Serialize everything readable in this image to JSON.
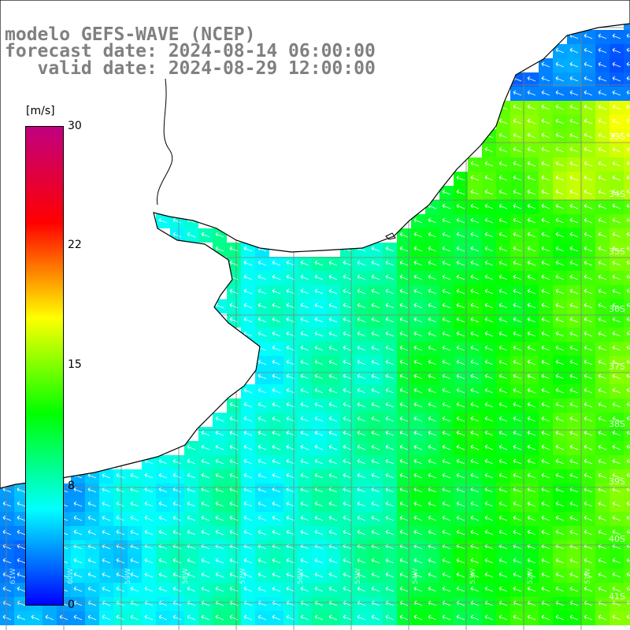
{
  "title": {
    "line1": "modelo GEFS-WAVE (NCEP)",
    "line2": "forecast date: 2024-08-14 06:00:00",
    "line3": "   valid date: 2024-08-29 12:00:00"
  },
  "colorbar": {
    "unit": "[m/s]",
    "min": 0,
    "max": 30,
    "ticks": [
      "30",
      "22",
      "15",
      "8",
      "0"
    ],
    "colors": [
      "#0000ff",
      "#00ffff",
      "#00ff00",
      "#ffff00",
      "#ff0000",
      "#c00080"
    ]
  },
  "latitude_labels": [
    "33S",
    "34S",
    "35S",
    "36S",
    "37S",
    "38S",
    "39S",
    "40S",
    "41S"
  ],
  "longitude_labels": [
    "61W",
    "60W",
    "59W",
    "58W",
    "57W",
    "56W",
    "55W",
    "54W",
    "53W",
    "52W",
    "51W"
  ],
  "map_colors": {
    "land": "#ffffff",
    "coastline": "#000000",
    "grid": "#808080",
    "arrow": "#ffffff"
  }
}
